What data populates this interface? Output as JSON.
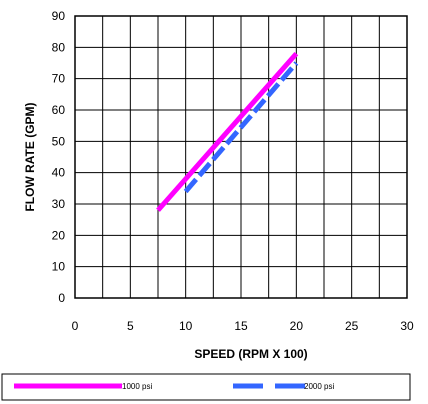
{
  "chart_data": {
    "type": "line",
    "xlabel": "SPEED (RPM X 100)",
    "ylabel": "FLOW RATE (GPM)",
    "xlim": [
      0,
      30
    ],
    "ylim": [
      0,
      90
    ],
    "x_ticks": [
      "0",
      "5",
      "10",
      "15",
      "20",
      "25",
      "30"
    ],
    "y_ticks": [
      "0",
      "10",
      "20",
      "30",
      "40",
      "50",
      "60",
      "70",
      "80",
      "90"
    ],
    "grid": true,
    "legend_position": "bottom",
    "series": [
      {
        "name": "1000 psi",
        "color": "#ff00ff",
        "style": "solid",
        "x": [
          7.5,
          20
        ],
        "y": [
          28,
          78
        ]
      },
      {
        "name": "2000 psi",
        "color": "#3366ff",
        "style": "dashed",
        "x": [
          10,
          20
        ],
        "y": [
          34,
          75
        ]
      }
    ]
  }
}
